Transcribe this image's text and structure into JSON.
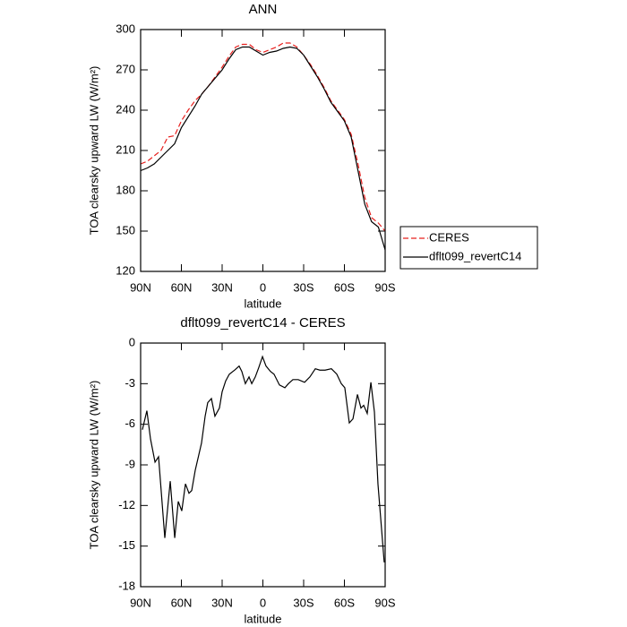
{
  "chart_data": [
    {
      "type": "line",
      "title": "ANN",
      "xlabel": "latitude",
      "ylabel": "TOA clearsky upward LW (W/m²)",
      "x": [
        90,
        85,
        80,
        75,
        70,
        65,
        60,
        55,
        50,
        45,
        40,
        35,
        30,
        25,
        20,
        15,
        10,
        5,
        0,
        -5,
        -10,
        -15,
        -20,
        -25,
        -30,
        -35,
        -40,
        -45,
        -50,
        -55,
        -60,
        -65,
        -70,
        -75,
        -80,
        -85,
        -90
      ],
      "series": [
        {
          "name": "CERES",
          "color": "#e8201e",
          "line_style": "dashed",
          "values": [
            200,
            202,
            206,
            210,
            220,
            221,
            232,
            240,
            247,
            252,
            258,
            265,
            272,
            280,
            287,
            289,
            289,
            285,
            283,
            285,
            287,
            290,
            290,
            287,
            281,
            274,
            266,
            257,
            247,
            240,
            233,
            222,
            200,
            175,
            160,
            156,
            150
          ]
        },
        {
          "name": "dflt099_revertC14",
          "color": "#000000",
          "line_style": "solid",
          "values": [
            195,
            197,
            200,
            205,
            210,
            215,
            227,
            235,
            243,
            252,
            258,
            264,
            270,
            278,
            285,
            287,
            287,
            284,
            281,
            283,
            284,
            286,
            287,
            286,
            281,
            273,
            265,
            256,
            246,
            239,
            232,
            220,
            195,
            170,
            157,
            153,
            136
          ]
        }
      ],
      "xlim": [
        90,
        -90
      ],
      "xticks": [
        {
          "value": 90,
          "label": "90N"
        },
        {
          "value": 60,
          "label": "60N"
        },
        {
          "value": 30,
          "label": "30N"
        },
        0,
        {
          "value": -30,
          "label": "30S"
        },
        {
          "value": -60,
          "label": "60S"
        },
        {
          "value": -90,
          "label": "90S"
        }
      ],
      "ylim": [
        120,
        300
      ],
      "yticks": [
        120,
        150,
        180,
        210,
        240,
        270,
        300
      ],
      "legend": "outside-right"
    },
    {
      "type": "line",
      "title": "dflt099_revertC14 - CERES",
      "xlabel": "latitude",
      "ylabel": "TOA clearsky upward LW (W/m²)",
      "series": [
        {
          "color": "#000000",
          "line_style": "solid",
          "x": [
            88.7,
            85.4,
            82.7,
            79.4,
            76.8,
            72.2,
            68.2,
            64.9,
            62.3,
            59.7,
            57.0,
            54.4,
            52.4,
            49.8,
            45.2,
            42.5,
            40.6,
            37.9,
            35.3,
            32.0,
            30.0,
            27.4,
            24.7,
            20.8,
            17.5,
            15.5,
            12.9,
            10.2,
            8.2,
            5.6,
            3.0,
            0.3,
            -2.3,
            -5.6,
            -8.2,
            -12.2,
            -16.2,
            -18.8,
            -22.1,
            -26.0,
            -30.7,
            -34.6,
            -38.6,
            -41.9,
            -45.8,
            -50.4,
            -54.4,
            -57.7,
            -60.3,
            -63.6,
            -66.3,
            -69.6,
            -72.2,
            -74.2,
            -76.8,
            -79.5,
            -82.1,
            -84.7,
            -89.3
          ],
          "values": [
            -6.4,
            -5.0,
            -7.1,
            -8.8,
            -8.4,
            -14.4,
            -10.2,
            -14.4,
            -11.7,
            -12.4,
            -10.4,
            -11.1,
            -10.9,
            -9.4,
            -7.4,
            -5.4,
            -4.4,
            -4.1,
            -5.4,
            -4.8,
            -3.6,
            -2.8,
            -2.3,
            -2.0,
            -1.7,
            -2.1,
            -3.0,
            -2.5,
            -3.0,
            -2.5,
            -1.8,
            -1.0,
            -1.7,
            -2.1,
            -2.3,
            -3.1,
            -3.3,
            -3.0,
            -2.7,
            -2.7,
            -2.9,
            -2.5,
            -1.9,
            -2.0,
            -2.0,
            -1.9,
            -2.3,
            -3.0,
            -3.3,
            -5.9,
            -5.6,
            -3.8,
            -4.8,
            -4.6,
            -5.2,
            -2.9,
            -5.1,
            -10.4,
            -16.2
          ]
        }
      ],
      "xlim": [
        90,
        -90
      ],
      "xticks": [
        {
          "value": 90,
          "label": "90N"
        },
        {
          "value": 60,
          "label": "60N"
        },
        {
          "value": 30,
          "label": "30N"
        },
        0,
        {
          "value": -30,
          "label": "30S"
        },
        {
          "value": -60,
          "label": "60S"
        },
        {
          "value": -90,
          "label": "90S"
        }
      ],
      "ylim": [
        -18,
        0
      ],
      "yticks": [
        -18,
        -15,
        -12,
        -9,
        -6,
        -3,
        0
      ]
    }
  ]
}
